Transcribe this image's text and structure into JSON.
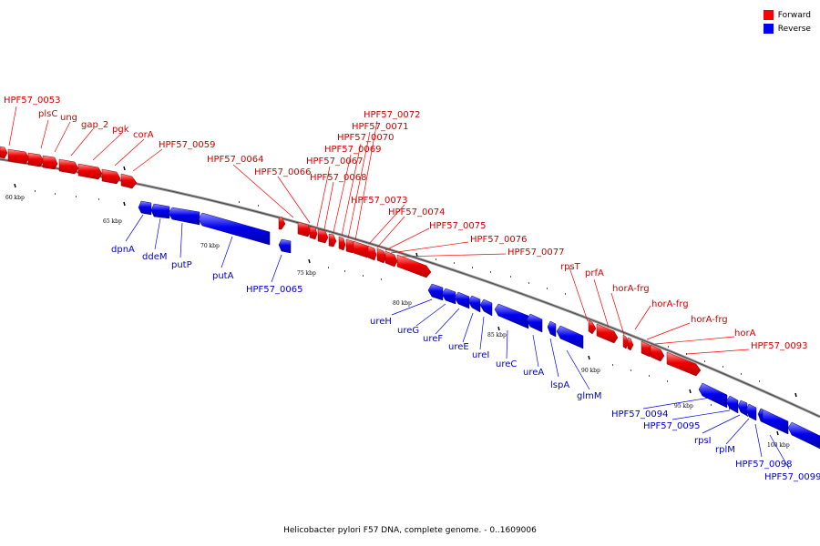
{
  "caption": "Helicobacter pylori F57 DNA, complete genome. - 0..1609006",
  "legend": [
    {
      "label": "Forward",
      "color": "#ff0000"
    },
    {
      "label": "Reverse",
      "color": "#0000ff"
    }
  ],
  "scale_labels": [
    "60 kbp",
    "65 kbp",
    "70 kbp",
    "75 kbp",
    "80 kbp",
    "85 kbp",
    "90 kbp",
    "95 kbp",
    "100 kbp"
  ],
  "forward_genes": [
    "HPF57_0053",
    "plsC",
    "ung",
    "gap_2",
    "pgk",
    "corA",
    "HPF57_0059",
    "HPF57_0064",
    "HPF57_0066",
    "HPF57_0067",
    "HPF57_0068",
    "HPF57_0069",
    "HPF57_0070",
    "HPF57_0071",
    "HPF57_0072",
    "HPF57_0073",
    "HPF57_0074",
    "HPF57_0075",
    "HPF57_0076",
    "HPF57_0077",
    "rpsT",
    "prfA",
    "horA-frg",
    "horA-frg",
    "horA-frg",
    "horA",
    "HPF57_0093"
  ],
  "reverse_genes": [
    "dpnA",
    "ddeM",
    "putP",
    "putA",
    "HPF57_0065",
    "ureH",
    "ureG",
    "ureF",
    "ureE",
    "ureI",
    "ureC",
    "ureA",
    "lspA",
    "glmM",
    "HPF57_0094",
    "HPF57_0095",
    "rpsI",
    "rplM",
    "HPF57_0098",
    "HPF57_0099"
  ]
}
